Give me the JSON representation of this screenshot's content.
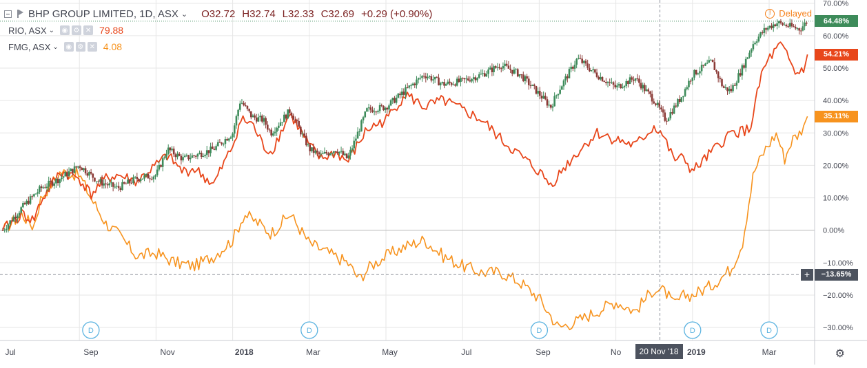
{
  "header": {
    "symbol": "BHP GROUP LIMITED, 1D, ASX",
    "open": "O32.72",
    "high": "H32.74",
    "low": "L32.33",
    "close": "C32.69",
    "change": "+0.29 (+0.90%)",
    "delayed": "Delayed"
  },
  "compare": [
    {
      "symbol": "RIO, ASX",
      "value": "79.88",
      "color": "#e8461a"
    },
    {
      "symbol": "FMG, ASX",
      "value": "4.08",
      "color": "#f7931e"
    }
  ],
  "badges": {
    "bhp": "64.48%",
    "rio": "54.21%",
    "fmg": "35.11%",
    "crosshair": "−13.65%",
    "crosshair_date": "20 Nov '18"
  },
  "chart_data": {
    "type": "line",
    "x_labels": [
      "Jul",
      "Sep",
      "Nov",
      "2018",
      "Mar",
      "May",
      "Jul",
      "Sep",
      "No",
      "2019",
      "Mar"
    ],
    "y_ticks": [
      "70.00%",
      "60.00%",
      "50.00%",
      "40.00%",
      "30.00%",
      "20.00%",
      "10.00%",
      "0.00%",
      "−10.00%",
      "−20.00%",
      "−30.00%"
    ],
    "ylim": [
      -34,
      71
    ],
    "dividend_marker": "D",
    "dividend_months": [
      2.3,
      8.0,
      14.0,
      18.0,
      20.0
    ],
    "colors": {
      "up": "#3d8b5a",
      "down": "#8b3a36",
      "rio": "#e8461a",
      "fmg": "#f7931e",
      "axis_text": "#434651",
      "grid": "#e6e6e6",
      "zero": "#b8b8b8",
      "dividend": "#5bb3e0"
    },
    "series": [
      {
        "name": "BHP GROUP LIMITED",
        "style": "candles",
        "points": [
          [
            0,
            0
          ],
          [
            0.5,
            7
          ],
          [
            1,
            13
          ],
          [
            1.5,
            16
          ],
          [
            2,
            20
          ],
          [
            2.5,
            15
          ],
          [
            3,
            13
          ],
          [
            3.5,
            16
          ],
          [
            4,
            17
          ],
          [
            4.3,
            25
          ],
          [
            4.7,
            22
          ],
          [
            5,
            23
          ],
          [
            5.5,
            25
          ],
          [
            6,
            30
          ],
          [
            6.2,
            40
          ],
          [
            6.5,
            35
          ],
          [
            6.8,
            34
          ],
          [
            7,
            30
          ],
          [
            7.5,
            37
          ],
          [
            8,
            25
          ],
          [
            8.3,
            23
          ],
          [
            8.7,
            25
          ],
          [
            9,
            22
          ],
          [
            9.5,
            37
          ],
          [
            10,
            38
          ],
          [
            10.5,
            43
          ],
          [
            11,
            48
          ],
          [
            11.5,
            45
          ],
          [
            12,
            46
          ],
          [
            12.5,
            48
          ],
          [
            13,
            51
          ],
          [
            13.5,
            48
          ],
          [
            14,
            42
          ],
          [
            14.3,
            38
          ],
          [
            14.5,
            43
          ],
          [
            15,
            53
          ],
          [
            15.5,
            48
          ],
          [
            16,
            44
          ],
          [
            16.5,
            47
          ],
          [
            17,
            40
          ],
          [
            17.3,
            34
          ],
          [
            17.7,
            41
          ],
          [
            18,
            48
          ],
          [
            18.5,
            52
          ],
          [
            18.8,
            44
          ],
          [
            19,
            43
          ],
          [
            19.3,
            50
          ],
          [
            19.6,
            58
          ],
          [
            19.9,
            62
          ],
          [
            20.2,
            64
          ],
          [
            20.5,
            63
          ],
          [
            20.8,
            62
          ],
          [
            21,
            64.5
          ]
        ]
      },
      {
        "name": "RIO, ASX",
        "style": "line",
        "points": [
          [
            0,
            0
          ],
          [
            0.5,
            5
          ],
          [
            0.8,
            3
          ],
          [
            1,
            9
          ],
          [
            1.5,
            18
          ],
          [
            2,
            16
          ],
          [
            2.3,
            11
          ],
          [
            2.7,
            16
          ],
          [
            3,
            17
          ],
          [
            3.5,
            15
          ],
          [
            4,
            20
          ],
          [
            4.3,
            23
          ],
          [
            4.7,
            18
          ],
          [
            5,
            19
          ],
          [
            5.5,
            14
          ],
          [
            6,
            26
          ],
          [
            6.2,
            34
          ],
          [
            6.5,
            33
          ],
          [
            6.8,
            26
          ],
          [
            7,
            24
          ],
          [
            7.5,
            36
          ],
          [
            8,
            26
          ],
          [
            8.3,
            22
          ],
          [
            8.7,
            24
          ],
          [
            9,
            21
          ],
          [
            9.5,
            31
          ],
          [
            10,
            34
          ],
          [
            10.5,
            42
          ],
          [
            11,
            38
          ],
          [
            11.5,
            40
          ],
          [
            12,
            37
          ],
          [
            12.5,
            34
          ],
          [
            13,
            28
          ],
          [
            13.5,
            23
          ],
          [
            14,
            18
          ],
          [
            14.3,
            14
          ],
          [
            14.7,
            20
          ],
          [
            15,
            24
          ],
          [
            15.5,
            30
          ],
          [
            16,
            28
          ],
          [
            16.5,
            26
          ],
          [
            17,
            32
          ],
          [
            17.2,
            30
          ],
          [
            17.5,
            22
          ],
          [
            17.8,
            22
          ],
          [
            18,
            18
          ],
          [
            18.5,
            24
          ],
          [
            19,
            30
          ],
          [
            19.5,
            31
          ],
          [
            19.8,
            48
          ],
          [
            20,
            53
          ],
          [
            20.3,
            57
          ],
          [
            20.5,
            53
          ],
          [
            20.7,
            48
          ],
          [
            20.9,
            50
          ],
          [
            21,
            54.2
          ]
        ]
      },
      {
        "name": "FMG, ASX",
        "style": "line",
        "points": [
          [
            0,
            0
          ],
          [
            0.5,
            5
          ],
          [
            0.8,
            1
          ],
          [
            1,
            10
          ],
          [
            1.5,
            18
          ],
          [
            2,
            17
          ],
          [
            2.3,
            10
          ],
          [
            2.7,
            2
          ],
          [
            3,
            -1
          ],
          [
            3.5,
            -8
          ],
          [
            4,
            -7
          ],
          [
            4.5,
            -10
          ],
          [
            5,
            -11
          ],
          [
            5.5,
            -8
          ],
          [
            6,
            -3
          ],
          [
            6.3,
            5
          ],
          [
            6.7,
            2
          ],
          [
            7,
            -1
          ],
          [
            7.5,
            5
          ],
          [
            8,
            -4
          ],
          [
            8.5,
            -7
          ],
          [
            9,
            -10
          ],
          [
            9.3,
            -15
          ],
          [
            9.6,
            -11
          ],
          [
            10,
            -8
          ],
          [
            10.5,
            -5
          ],
          [
            11,
            -3
          ],
          [
            11.5,
            -8
          ],
          [
            12,
            -11
          ],
          [
            12.5,
            -13
          ],
          [
            13,
            -13
          ],
          [
            13.5,
            -16
          ],
          [
            14,
            -21
          ],
          [
            14.5,
            -30
          ],
          [
            15,
            -28
          ],
          [
            15.5,
            -25
          ],
          [
            16,
            -22
          ],
          [
            16.5,
            -25
          ],
          [
            17,
            -18
          ],
          [
            17.3,
            -19
          ],
          [
            17.5,
            -23
          ],
          [
            17.8,
            -20
          ],
          [
            18,
            -20
          ],
          [
            18.5,
            -17
          ],
          [
            19,
            -12
          ],
          [
            19.3,
            -4
          ],
          [
            19.6,
            18
          ],
          [
            19.9,
            25
          ],
          [
            20.2,
            30
          ],
          [
            20.4,
            22
          ],
          [
            20.6,
            28
          ],
          [
            20.8,
            30
          ],
          [
            21,
            35.1
          ]
        ]
      }
    ]
  }
}
